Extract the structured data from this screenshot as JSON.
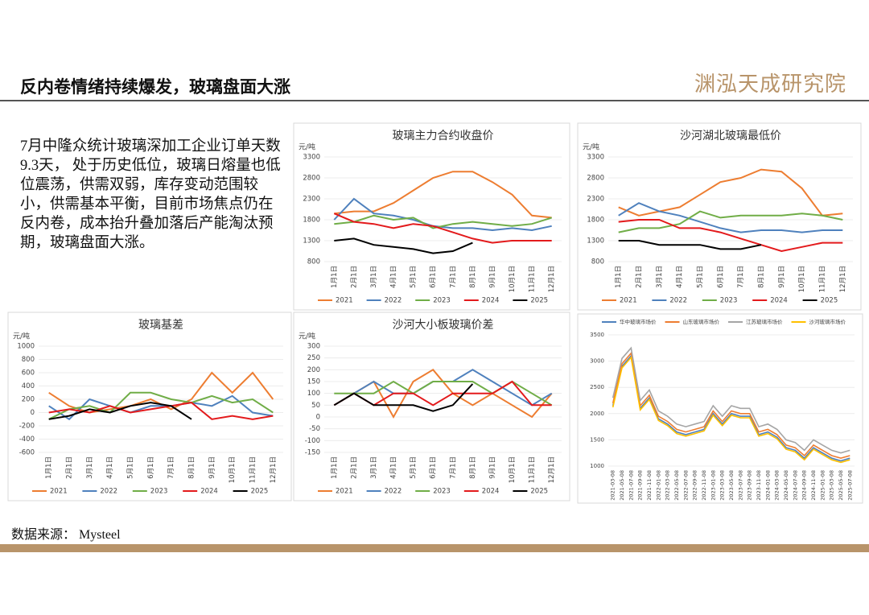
{
  "header": {
    "title": "反内卷情绪持续爆发，玻璃盘面大涨",
    "logo": "渊泓天成研究院"
  },
  "body_text": "7月中隆众统计玻璃深加工企业订单天数9.3天， 处于历史低位，玻璃日熔量也低位震荡，供需双弱，库存变动范围较小，供需基本平衡，目前市场焦点仍在反内卷，成本抬升叠加落后产能淘汰预期，玻璃盘面大涨。",
  "source": "数据来源：  Mysteel",
  "chart_data": [
    {
      "type": "line",
      "title": "玻璃主力合约收盘价",
      "y_label": "元/吨",
      "legend": "bottom",
      "grid": true,
      "categories": [
        "1月1日",
        "2月1日",
        "3月1日",
        "4月1日",
        "5月1日",
        "6月1日",
        "7月1日",
        "8月1日",
        "9月1日",
        "10月1日",
        "11月1日",
        "12月1日"
      ],
      "ylim": [
        800,
        3300
      ],
      "yticks": [
        800,
        1300,
        1800,
        2300,
        2800,
        3300
      ],
      "series": [
        {
          "name": "2021",
          "color": "#ed7d31",
          "values": [
            1950,
            2000,
            2000,
            2200,
            2500,
            2800,
            2950,
            2950,
            2700,
            2400,
            1900,
            1850
          ]
        },
        {
          "name": "2022",
          "color": "#4f81bd",
          "values": [
            1800,
            2300,
            1950,
            1900,
            1800,
            1650,
            1600,
            1600,
            1550,
            1600,
            1550,
            1650
          ]
        },
        {
          "name": "2023",
          "color": "#70ad47",
          "values": [
            1700,
            1750,
            1900,
            1800,
            1850,
            1600,
            1700,
            1750,
            1700,
            1650,
            1700,
            1850
          ]
        },
        {
          "name": "2024",
          "color": "#e31a1c",
          "values": [
            1950,
            1750,
            1700,
            1600,
            1700,
            1650,
            1500,
            1350,
            1250,
            1300,
            1300,
            1300
          ]
        },
        {
          "name": "2025",
          "color": "#000000",
          "values": [
            1300,
            1350,
            1200,
            1150,
            1100,
            1000,
            1050,
            1250,
            null,
            null,
            null,
            null
          ]
        }
      ]
    },
    {
      "type": "line",
      "title": "沙河湖北玻璃最低价",
      "y_label": "元/吨",
      "legend": "bottom",
      "grid": true,
      "categories": [
        "1月1日",
        "2月1日",
        "3月1日",
        "4月1日",
        "5月1日",
        "6月1日",
        "7月1日",
        "8月1日",
        "9月1日",
        "10月1日",
        "11月1日",
        "12月1日"
      ],
      "ylim": [
        800,
        3300
      ],
      "yticks": [
        800,
        1300,
        1800,
        2300,
        2800,
        3300
      ],
      "series": [
        {
          "name": "2021",
          "color": "#ed7d31",
          "values": [
            2100,
            1900,
            2000,
            2100,
            2400,
            2700,
            2800,
            3000,
            2950,
            2550,
            1900,
            1950
          ]
        },
        {
          "name": "2022",
          "color": "#4f81bd",
          "values": [
            1900,
            2200,
            2000,
            1900,
            1750,
            1600,
            1500,
            1550,
            1550,
            1500,
            1550,
            1550
          ]
        },
        {
          "name": "2023",
          "color": "#70ad47",
          "values": [
            1500,
            1600,
            1600,
            1700,
            2000,
            1850,
            1900,
            1900,
            1900,
            1950,
            1900,
            1800
          ]
        },
        {
          "name": "2024",
          "color": "#e31a1c",
          "values": [
            1750,
            1800,
            1800,
            1600,
            1600,
            1500,
            1350,
            1200,
            1050,
            1150,
            1250,
            1250
          ]
        },
        {
          "name": "2025",
          "color": "#000000",
          "values": [
            1300,
            1300,
            1200,
            1200,
            1200,
            1100,
            1100,
            1200,
            null,
            null,
            null,
            null
          ]
        }
      ]
    },
    {
      "type": "line",
      "title": "玻璃基差",
      "y_label": "元/吨",
      "legend": "bottom",
      "grid": true,
      "categories": [
        "1月1日",
        "2月1日",
        "3月1日",
        "4月1日",
        "5月1日",
        "6月1日",
        "7月1日",
        "8月1日",
        "9月1日",
        "10月1日",
        "11月1日",
        "12月1日"
      ],
      "ylim": [
        -600,
        1000
      ],
      "yticks": [
        -600,
        -400,
        -200,
        0,
        200,
        400,
        600,
        800,
        1000
      ],
      "series": [
        {
          "name": "2021",
          "color": "#ed7d31",
          "values": [
            300,
            100,
            0,
            50,
            100,
            200,
            50,
            200,
            600,
            300,
            600,
            200
          ]
        },
        {
          "name": "2022",
          "color": "#4f81bd",
          "values": [
            100,
            -100,
            200,
            100,
            0,
            100,
            100,
            150,
            100,
            250,
            0,
            -50
          ]
        },
        {
          "name": "2023",
          "color": "#70ad47",
          "values": [
            -100,
            50,
            100,
            0,
            300,
            300,
            200,
            150,
            250,
            150,
            200,
            0
          ]
        },
        {
          "name": "2024",
          "color": "#e31a1c",
          "values": [
            0,
            50,
            0,
            100,
            0,
            50,
            100,
            150,
            -100,
            -50,
            -100,
            -50
          ]
        },
        {
          "name": "2025",
          "color": "#000000",
          "values": [
            -100,
            -50,
            50,
            0,
            100,
            150,
            100,
            -100,
            null,
            null,
            null,
            null
          ]
        }
      ]
    },
    {
      "type": "line",
      "title": "沙河大小板玻璃价差",
      "y_label": "元/吨",
      "legend": "bottom",
      "grid": true,
      "categories": [
        "1月1日",
        "2月1日",
        "3月1日",
        "4月1日",
        "5月1日",
        "6月1日",
        "7月1日",
        "8月1日",
        "9月1日",
        "10月1日",
        "11月1日",
        "12月1日"
      ],
      "ylim": [
        -150,
        300
      ],
      "yticks": [
        -150,
        -100,
        -50,
        0,
        50,
        100,
        150,
        200,
        250,
        300
      ],
      "series": [
        {
          "name": "2021",
          "color": "#ed7d31",
          "values": [
            50,
            100,
            150,
            0,
            150,
            200,
            100,
            50,
            100,
            50,
            0,
            100
          ]
        },
        {
          "name": "2022",
          "color": "#4f81bd",
          "values": [
            50,
            100,
            150,
            100,
            100,
            150,
            150,
            200,
            150,
            100,
            50,
            100
          ]
        },
        {
          "name": "2023",
          "color": "#70ad47",
          "values": [
            100,
            100,
            100,
            150,
            100,
            150,
            150,
            150,
            100,
            150,
            100,
            50
          ]
        },
        {
          "name": "2024",
          "color": "#e31a1c",
          "values": [
            50,
            100,
            50,
            100,
            100,
            50,
            100,
            100,
            100,
            150,
            50,
            50
          ]
        },
        {
          "name": "2025",
          "color": "#000000",
          "values": [
            50,
            100,
            50,
            50,
            50,
            25,
            50,
            140,
            null,
            null,
            null,
            null
          ]
        }
      ]
    },
    {
      "type": "line",
      "legend": "top",
      "grid": true,
      "categories": [
        "2021-03-08",
        "2021-05-08",
        "2021-07-08",
        "2021-09-08",
        "2021-11-08",
        "2022-01-08",
        "2022-03-08",
        "2022-05-08",
        "2022-07-08",
        "2022-09-08",
        "2022-11-08",
        "2023-01-08",
        "2023-03-08",
        "2023-05-08",
        "2023-07-08",
        "2023-09-08",
        "2023-11-08",
        "2024-01-08",
        "2024-03-08",
        "2024-05-08",
        "2024-07-08",
        "2024-09-08",
        "2024-11-08",
        "2025-01-08",
        "2025-03-08",
        "2025-05-08",
        "2025-07-08"
      ],
      "ylim": [
        1000,
        3500
      ],
      "yticks": [
        1000,
        1500,
        2000,
        2500,
        3000,
        3500
      ],
      "series": [
        {
          "name": "华中玻璃市场价",
          "color": "#4f81bd",
          "values": [
            2150,
            2900,
            3100,
            2100,
            2300,
            1900,
            1800,
            1650,
            1600,
            1650,
            1700,
            2000,
            1800,
            2000,
            1950,
            1950,
            1600,
            1650,
            1550,
            1350,
            1300,
            1150,
            1350,
            1250,
            1150,
            1100,
            1150
          ]
        },
        {
          "name": "山东玻璃市场价",
          "color": "#ed7d31",
          "values": [
            2200,
            2950,
            3150,
            2150,
            2350,
            1950,
            1850,
            1700,
            1650,
            1700,
            1750,
            2050,
            1850,
            2050,
            2000,
            2000,
            1650,
            1700,
            1600,
            1400,
            1350,
            1200,
            1400,
            1300,
            1200,
            1150,
            1200
          ]
        },
        {
          "name": "江苏玻璃市场价",
          "color": "#a5a5a5",
          "values": [
            2300,
            3050,
            3250,
            2250,
            2450,
            2050,
            1950,
            1800,
            1750,
            1800,
            1850,
            2150,
            1950,
            2150,
            2100,
            2100,
            1750,
            1800,
            1700,
            1500,
            1450,
            1300,
            1500,
            1400,
            1300,
            1250,
            1300
          ]
        },
        {
          "name": "沙河玻璃市场价",
          "color": "#ffc000",
          "values": [
            2120,
            2870,
            3070,
            2070,
            2270,
            1870,
            1770,
            1620,
            1570,
            1620,
            1670,
            1970,
            1770,
            1970,
            1920,
            1920,
            1570,
            1620,
            1520,
            1320,
            1270,
            1120,
            1320,
            1220,
            1120,
            1070,
            1120
          ]
        }
      ]
    }
  ]
}
